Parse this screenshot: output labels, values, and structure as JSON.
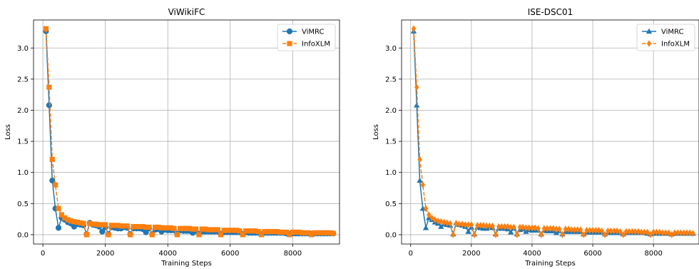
{
  "chart_data": [
    {
      "type": "line",
      "title": "ViWikiFC",
      "xlabel": "Training Steps",
      "ylabel": "Loss",
      "xlim": [
        -300,
        9500
      ],
      "ylim": [
        -0.15,
        3.45
      ],
      "xticks": [
        0,
        2000,
        4000,
        6000,
        8000
      ],
      "yticks": [
        0.0,
        0.5,
        1.0,
        1.5,
        2.0,
        2.5,
        3.0
      ],
      "xtick_labels": [
        "0",
        "2000",
        "4000",
        "6000",
        "8000"
      ],
      "ytick_labels": [
        "0.0",
        "0.5",
        "1.0",
        "1.5",
        "2.0",
        "2.5",
        "3.0"
      ],
      "grid": true,
      "legend": "top-right",
      "series": [
        {
          "name": "ViMRC",
          "color": "#1f77b4",
          "marker": "circle",
          "linestyle": "solid",
          "x": [
            100,
            200,
            300,
            400,
            500,
            600,
            700,
            800,
            900,
            1000,
            1100,
            1200,
            1300,
            1400,
            1500,
            1600,
            1700,
            1800,
            1900,
            2000,
            2100,
            2200,
            2300,
            2400,
            2500,
            2600,
            2700,
            2800,
            2900,
            3000,
            3100,
            3200,
            3300,
            3400,
            3500,
            3600,
            3700,
            3800,
            3900,
            4000,
            4100,
            4200,
            4300,
            4400,
            4500,
            4600,
            4700,
            4800,
            4900,
            5000,
            5100,
            5200,
            5300,
            5400,
            5500,
            5600,
            5700,
            5800,
            5900,
            6000,
            6100,
            6200,
            6300,
            6400,
            6500,
            6600,
            6700,
            6800,
            6900,
            7000,
            7100,
            7200,
            7300,
            7400,
            7500,
            7600,
            7700,
            7800,
            7900,
            8000,
            8100,
            8200,
            8300,
            8400,
            8500,
            8600,
            8700,
            8800,
            8900,
            9000,
            9100,
            9200,
            9300
          ],
          "y": [
            3.27,
            2.08,
            0.87,
            0.42,
            0.11,
            0.27,
            0.24,
            0.2,
            0.18,
            0.13,
            0.17,
            0.16,
            0.15,
            0.01,
            0.19,
            0.16,
            0.15,
            0.13,
            0.05,
            0.12,
            0.01,
            0.12,
            0.11,
            0.1,
            0.1,
            0.12,
            0.11,
            0.01,
            0.1,
            0.1,
            0.1,
            0.09,
            0.04,
            0.1,
            0.01,
            0.08,
            0.09,
            0.05,
            0.08,
            0.07,
            0.07,
            0.07,
            0.01,
            0.07,
            0.06,
            0.06,
            0.06,
            0.03,
            0.06,
            0.01,
            0.05,
            0.05,
            0.05,
            0.05,
            0.05,
            0.05,
            0.01,
            0.04,
            0.04,
            0.04,
            0.04,
            0.04,
            0.04,
            0.01,
            0.04,
            0.03,
            0.03,
            0.03,
            0.03,
            0.01,
            0.03,
            0.03,
            0.03,
            0.03,
            0.03,
            0.03,
            0.03,
            0.02,
            0.01,
            0.02,
            0.02,
            0.02,
            0.02,
            0.02,
            0.02,
            0.01,
            0.02,
            0.02,
            0.02,
            0.02,
            0.02,
            0.02,
            0.02
          ]
        },
        {
          "name": "InfoXLM",
          "color": "#ff7f0e",
          "marker": "square",
          "linestyle": "dashed",
          "x": [
            100,
            200,
            300,
            400,
            500,
            600,
            700,
            800,
            900,
            1000,
            1100,
            1200,
            1300,
            1400,
            1500,
            1600,
            1700,
            1800,
            1900,
            2000,
            2100,
            2200,
            2300,
            2400,
            2500,
            2600,
            2700,
            2800,
            2900,
            3000,
            3100,
            3200,
            3300,
            3400,
            3500,
            3600,
            3700,
            3800,
            3900,
            4000,
            4100,
            4200,
            4300,
            4400,
            4500,
            4600,
            4700,
            4800,
            4900,
            5000,
            5100,
            5200,
            5300,
            5400,
            5500,
            5600,
            5700,
            5800,
            5900,
            6000,
            6100,
            6200,
            6300,
            6400,
            6500,
            6600,
            6700,
            6800,
            6900,
            7000,
            7100,
            7200,
            7300,
            7400,
            7500,
            7600,
            7700,
            7800,
            7900,
            8000,
            8100,
            8200,
            8300,
            8400,
            8500,
            8600,
            8700,
            8800,
            8900,
            9000,
            9100,
            9200,
            9300
          ],
          "y": [
            3.31,
            2.37,
            1.21,
            0.8,
            0.42,
            0.32,
            0.27,
            0.24,
            0.22,
            0.21,
            0.2,
            0.19,
            0.18,
            0.0,
            0.18,
            0.17,
            0.17,
            0.16,
            0.16,
            0.16,
            0.0,
            0.15,
            0.15,
            0.15,
            0.14,
            0.14,
            0.14,
            0.0,
            0.13,
            0.13,
            0.13,
            0.13,
            0.12,
            0.12,
            0.0,
            0.12,
            0.12,
            0.11,
            0.11,
            0.11,
            0.11,
            0.1,
            0.0,
            0.1,
            0.1,
            0.1,
            0.1,
            0.09,
            0.09,
            0.0,
            0.09,
            0.09,
            0.08,
            0.08,
            0.08,
            0.08,
            0.0,
            0.07,
            0.07,
            0.07,
            0.07,
            0.07,
            0.06,
            0.0,
            0.06,
            0.06,
            0.06,
            0.06,
            0.05,
            0.0,
            0.05,
            0.05,
            0.05,
            0.05,
            0.05,
            0.04,
            0.04,
            0.04,
            0.0,
            0.04,
            0.04,
            0.04,
            0.03,
            0.03,
            0.03,
            0.0,
            0.03,
            0.03,
            0.03,
            0.03,
            0.03,
            0.03,
            0.02
          ]
        }
      ]
    },
    {
      "type": "line",
      "title": "ISE-DSC01",
      "xlabel": "Training Steps",
      "ylabel": "Loss",
      "xlim": [
        -300,
        9500
      ],
      "ylim": [
        -0.15,
        3.45
      ],
      "xticks": [
        0,
        2000,
        4000,
        6000,
        8000
      ],
      "yticks": [
        0.0,
        0.5,
        1.0,
        1.5,
        2.0,
        2.5,
        3.0
      ],
      "xtick_labels": [
        "0",
        "2000",
        "4000",
        "6000",
        "8000"
      ],
      "ytick_labels": [
        "0.0",
        "0.5",
        "1.0",
        "1.5",
        "2.0",
        "2.5",
        "3.0"
      ],
      "grid": true,
      "legend": "top-right",
      "series": [
        {
          "name": "ViMRC",
          "color": "#1f77b4",
          "marker": "triangle-up",
          "linestyle": "solid",
          "x": [
            100,
            200,
            300,
            400,
            500,
            600,
            700,
            800,
            900,
            1000,
            1100,
            1200,
            1300,
            1400,
            1500,
            1600,
            1700,
            1800,
            1900,
            2000,
            2100,
            2200,
            2300,
            2400,
            2500,
            2600,
            2700,
            2800,
            2900,
            3000,
            3100,
            3200,
            3300,
            3400,
            3500,
            3600,
            3700,
            3800,
            3900,
            4000,
            4100,
            4200,
            4300,
            4400,
            4500,
            4600,
            4700,
            4800,
            4900,
            5000,
            5100,
            5200,
            5300,
            5400,
            5500,
            5600,
            5700,
            5800,
            5900,
            6000,
            6100,
            6200,
            6300,
            6400,
            6500,
            6600,
            6700,
            6800,
            6900,
            7000,
            7100,
            7200,
            7300,
            7400,
            7500,
            7600,
            7700,
            7800,
            7900,
            8000,
            8100,
            8200,
            8300,
            8400,
            8500,
            8600,
            8700,
            8800,
            8900,
            9000,
            9100,
            9200,
            9300
          ],
          "y": [
            3.27,
            2.08,
            0.87,
            0.42,
            0.11,
            0.27,
            0.24,
            0.2,
            0.18,
            0.13,
            0.17,
            0.16,
            0.15,
            0.01,
            0.19,
            0.16,
            0.15,
            0.13,
            0.05,
            0.12,
            0.01,
            0.12,
            0.11,
            0.1,
            0.1,
            0.12,
            0.11,
            0.01,
            0.1,
            0.1,
            0.1,
            0.09,
            0.04,
            0.1,
            0.01,
            0.08,
            0.09,
            0.05,
            0.08,
            0.07,
            0.07,
            0.07,
            0.01,
            0.07,
            0.06,
            0.06,
            0.06,
            0.03,
            0.06,
            0.01,
            0.05,
            0.05,
            0.05,
            0.05,
            0.05,
            0.05,
            0.01,
            0.04,
            0.04,
            0.04,
            0.04,
            0.04,
            0.04,
            0.01,
            0.04,
            0.03,
            0.03,
            0.03,
            0.03,
            0.01,
            0.03,
            0.03,
            0.03,
            0.03,
            0.03,
            0.03,
            0.03,
            0.02,
            0.01,
            0.02,
            0.02,
            0.02,
            0.02,
            0.02,
            0.02,
            0.01,
            0.02,
            0.02,
            0.02,
            0.02,
            0.02,
            0.02,
            0.02
          ]
        },
        {
          "name": "InfoXLM",
          "color": "#ff7f0e",
          "marker": "diamond",
          "linestyle": "dashed",
          "x": [
            100,
            200,
            300,
            400,
            500,
            600,
            700,
            800,
            900,
            1000,
            1100,
            1200,
            1300,
            1400,
            1500,
            1600,
            1700,
            1800,
            1900,
            2000,
            2100,
            2200,
            2300,
            2400,
            2500,
            2600,
            2700,
            2800,
            2900,
            3000,
            3100,
            3200,
            3300,
            3400,
            3500,
            3600,
            3700,
            3800,
            3900,
            4000,
            4100,
            4200,
            4300,
            4400,
            4500,
            4600,
            4700,
            4800,
            4900,
            5000,
            5100,
            5200,
            5300,
            5400,
            5500,
            5600,
            5700,
            5800,
            5900,
            6000,
            6100,
            6200,
            6300,
            6400,
            6500,
            6600,
            6700,
            6800,
            6900,
            7000,
            7100,
            7200,
            7300,
            7400,
            7500,
            7600,
            7700,
            7800,
            7900,
            8000,
            8100,
            8200,
            8300,
            8400,
            8500,
            8600,
            8700,
            8800,
            8900,
            9000,
            9100,
            9200,
            9300
          ],
          "y": [
            3.31,
            2.37,
            1.21,
            0.8,
            0.42,
            0.32,
            0.27,
            0.24,
            0.22,
            0.21,
            0.2,
            0.19,
            0.18,
            0.0,
            0.18,
            0.17,
            0.17,
            0.16,
            0.16,
            0.16,
            0.0,
            0.15,
            0.15,
            0.15,
            0.14,
            0.14,
            0.14,
            0.0,
            0.13,
            0.13,
            0.13,
            0.13,
            0.12,
            0.12,
            0.0,
            0.12,
            0.12,
            0.11,
            0.11,
            0.11,
            0.11,
            0.1,
            0.0,
            0.1,
            0.1,
            0.1,
            0.1,
            0.09,
            0.09,
            0.0,
            0.09,
            0.09,
            0.08,
            0.08,
            0.08,
            0.08,
            0.0,
            0.07,
            0.07,
            0.07,
            0.07,
            0.07,
            0.06,
            0.0,
            0.06,
            0.06,
            0.06,
            0.06,
            0.05,
            0.0,
            0.05,
            0.05,
            0.05,
            0.05,
            0.05,
            0.04,
            0.04,
            0.04,
            0.0,
            0.04,
            0.04,
            0.04,
            0.03,
            0.03,
            0.03,
            0.0,
            0.03,
            0.03,
            0.03,
            0.03,
            0.03,
            0.03,
            0.02
          ]
        }
      ]
    }
  ]
}
